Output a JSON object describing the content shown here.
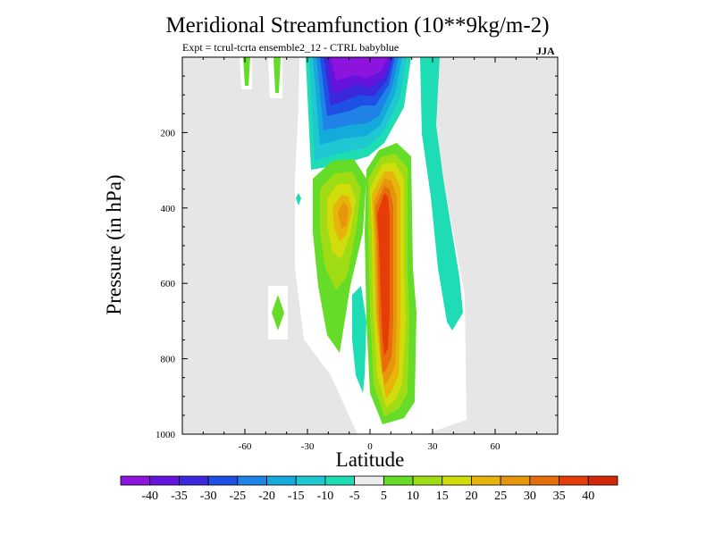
{
  "figure": {
    "title": "Meridional Streamfunction (10**9kg/m-2)",
    "subtitle": "Expt = tcrul-tcrta   ensemble2_12 - CTRL babyblue",
    "season": "JJA"
  },
  "chart_data": {
    "type": "heatmap",
    "xlabel": "Latitude",
    "ylabel": "Pressure (in hPa)",
    "xlim": [
      -90,
      90
    ],
    "ylim": [
      1000,
      0
    ],
    "x_ticks": [
      -60,
      -30,
      0,
      30,
      60
    ],
    "y_ticks": [
      200,
      400,
      600,
      800,
      1000
    ],
    "missing_color": "#e6e6e6",
    "colorbar": {
      "labels": [
        "-40",
        "-35",
        "-30",
        "-25",
        "-20",
        "-15",
        "-10",
        "-5",
        "5",
        "10",
        "15",
        "20",
        "25",
        "30",
        "35",
        "40"
      ],
      "colors": [
        "#8c14dc",
        "#6414dc",
        "#3c28dc",
        "#1e50e6",
        "#1e82e6",
        "#14aadc",
        "#1ec8d2",
        "#1edcb4",
        "#ececec",
        "#64dc28",
        "#a0dc14",
        "#d2dc0a",
        "#e6b40a",
        "#e6960a",
        "#e66e0a",
        "#e63c0a",
        "#d22808"
      ]
    },
    "features": [
      {
        "name": "upper-negative-cell",
        "description": "negative streamfunction near top",
        "lat_range": [
          -18,
          8
        ],
        "pressure_range": [
          0,
          290
        ],
        "min_value": -40
      },
      {
        "name": "southern-positive-cell",
        "description": "positive cell south of equator",
        "lat_range": [
          -20,
          0
        ],
        "pressure_range": [
          250,
          590
        ],
        "max_value": 25
      },
      {
        "name": "main-positive-cell",
        "description": "strong positive cell north of equator",
        "lat_range": [
          0,
          20
        ],
        "pressure_range": [
          230,
          980
        ],
        "max_value": 40
      },
      {
        "name": "northern-negative-plume",
        "description": "weak negative plume",
        "lat_range": [
          25,
          45
        ],
        "pressure_range": [
          0,
          770
        ],
        "min_value": -10
      }
    ]
  }
}
